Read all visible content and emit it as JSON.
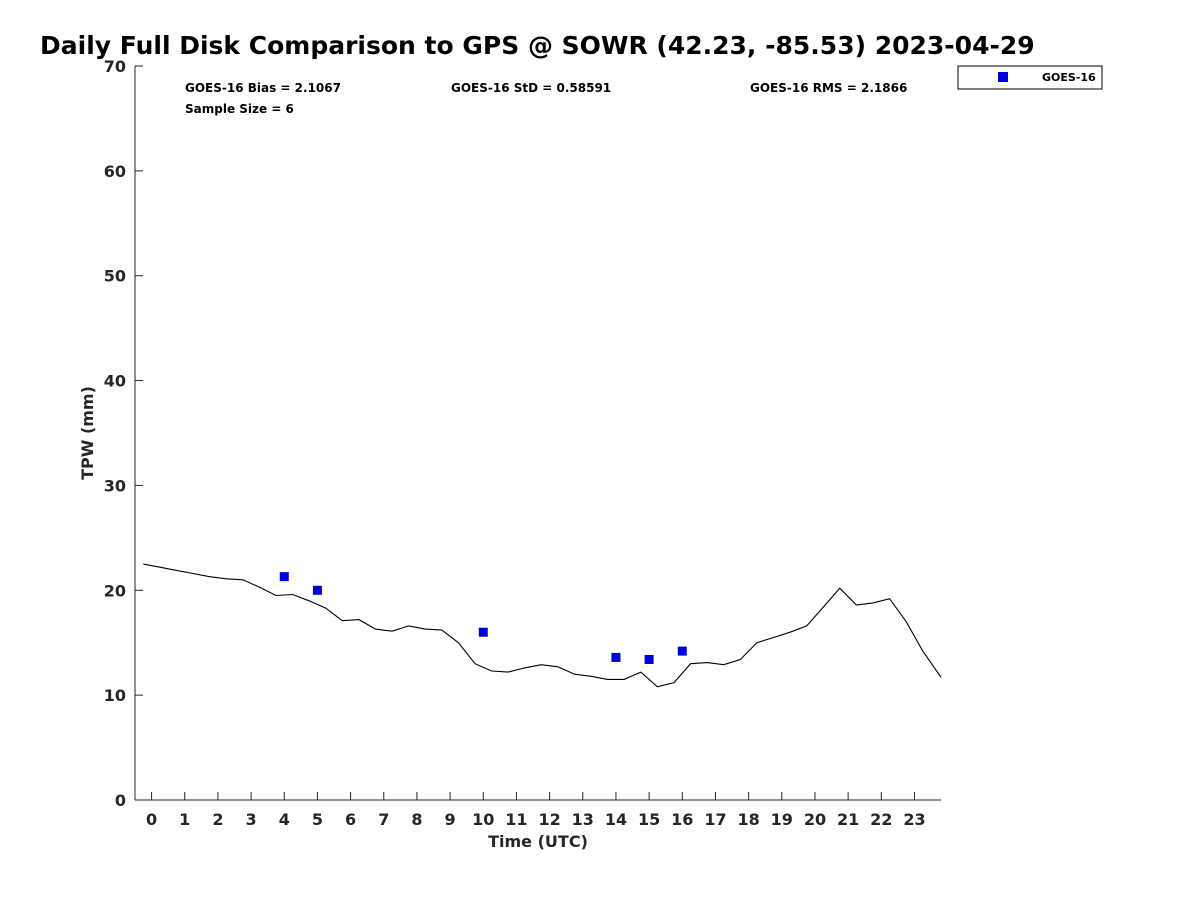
{
  "chart_data": {
    "type": "scatter",
    "title": "Daily Full Disk Comparison to GPS @ SOWR (42.23, -85.53) 2023-04-29",
    "xlabel": "Time (UTC)",
    "ylabel": "TPW (mm)",
    "xlim": [
      -0.5,
      23.8
    ],
    "ylim": [
      0,
      70
    ],
    "x_ticks": [
      0,
      1,
      2,
      3,
      4,
      5,
      6,
      7,
      8,
      9,
      10,
      11,
      12,
      13,
      14,
      15,
      16,
      17,
      18,
      19,
      20,
      21,
      22,
      23
    ],
    "y_ticks": [
      0,
      10,
      20,
      30,
      40,
      50,
      60,
      70
    ],
    "grid": false,
    "legend": {
      "position": "top-right",
      "entries": [
        "GOES-16"
      ]
    },
    "stats": {
      "bias": "GOES-16 Bias = 2.1067",
      "std": "GOES-16 StD = 0.58591",
      "rms": "GOES-16 RMS = 2.1866",
      "sample": "Sample Size = 6"
    },
    "series": [
      {
        "name": "GOES-16",
        "type": "scatter",
        "color": "#0000dd",
        "x": [
          4.0,
          5.0,
          10.0,
          14.0,
          15.0,
          16.0
        ],
        "y": [
          21.3,
          20.0,
          16.0,
          13.6,
          13.4,
          14.2
        ]
      },
      {
        "type": "line",
        "color": "#000000",
        "x": [
          -0.25,
          0.25,
          0.75,
          1.25,
          1.75,
          2.25,
          2.75,
          3.25,
          3.75,
          4.25,
          4.75,
          5.25,
          5.75,
          6.25,
          6.75,
          7.25,
          7.75,
          8.25,
          8.75,
          9.25,
          9.75,
          10.25,
          10.75,
          11.25,
          11.75,
          12.25,
          12.75,
          13.25,
          13.75,
          14.25,
          14.75,
          15.25,
          15.75,
          16.25,
          16.75,
          17.25,
          17.75,
          18.25,
          18.75,
          19.25,
          19.75,
          20.25,
          20.75,
          21.25,
          21.75,
          22.25,
          22.75,
          23.25,
          23.8
        ],
        "y": [
          22.5,
          22.2,
          21.9,
          21.6,
          21.3,
          21.1,
          21.0,
          20.3,
          19.5,
          19.6,
          19.0,
          18.3,
          17.1,
          17.2,
          16.3,
          16.1,
          16.6,
          16.3,
          16.2,
          15.0,
          13.0,
          12.3,
          12.2,
          12.6,
          12.9,
          12.7,
          12.0,
          11.8,
          11.5,
          11.5,
          12.2,
          10.8,
          11.2,
          13.0,
          13.1,
          12.9,
          13.4,
          15.0,
          15.5,
          16.0,
          16.6,
          18.4,
          20.2,
          18.6,
          18.8,
          19.2,
          17.0,
          14.2,
          11.7
        ]
      }
    ]
  }
}
